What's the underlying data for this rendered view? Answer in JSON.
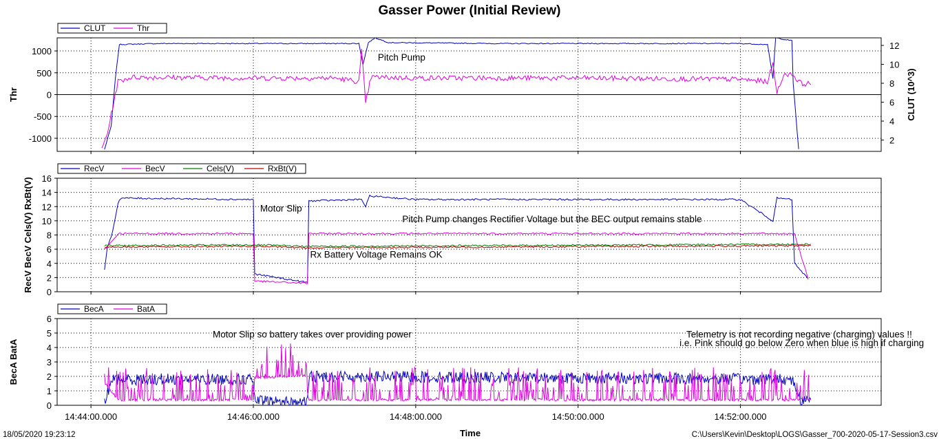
{
  "chart_data": {
    "type": "line",
    "title": "Gasser Power (Initial Review)",
    "xlabel": "Time",
    "x_axis": {
      "range": [
        "14:43:35",
        "14:53:44"
      ],
      "ticks": [
        "14:44:00.000",
        "14:46:00.000",
        "14:48:00.000",
        "14:50:00.000",
        "14:52:00.000"
      ],
      "grid": true
    },
    "footer": {
      "left": "18/05/2020 19:23:12",
      "right": "C:\\Users\\Kevin\\Desktop\\LOGS\\Gasser_700-2020-05-17-Session3.csv"
    },
    "panels": [
      {
        "id": "top",
        "ylabel": "Thr",
        "ylabel_right": "CLUT  (10^3)",
        "ylim": [
          -1300,
          1300
        ],
        "yticks": [
          "1000",
          "500",
          "0",
          "-500",
          "-1000"
        ],
        "ylim_right": [
          0.8,
          12.8
        ],
        "yticks_right": [
          "12",
          "10",
          "8",
          "6",
          "4",
          "2"
        ],
        "legend": [
          {
            "name": "CLUT",
            "color": "#0000c0"
          },
          {
            "name": "Thr",
            "color": "#e000e0"
          }
        ],
        "annotations": [
          {
            "text": "Pitch Pump",
            "x": "14:47:32",
            "y": 780
          }
        ],
        "series": [
          {
            "name": "CLUT",
            "axis": "right",
            "color": "#0000c0",
            "points": [
              [
                "14:44:10",
                1.0
              ],
              [
                "14:44:15",
                3.5
              ],
              [
                "14:44:18",
                8.5
              ],
              [
                "14:44:21",
                12.1
              ],
              [
                "14:44:50",
                12.2
              ],
              [
                "14:47:00",
                12.2
              ],
              [
                "14:47:18",
                12.2
              ],
              [
                "14:47:21",
                10.0
              ],
              [
                "14:47:25",
                12.3
              ],
              [
                "14:47:30",
                12.8
              ],
              [
                "14:47:40",
                12.3
              ],
              [
                "14:49:00",
                12.2
              ],
              [
                "14:52:00",
                12.2
              ],
              [
                "14:52:20",
                12.1
              ],
              [
                "14:52:24",
                8.5
              ],
              [
                "14:52:26",
                12.8
              ],
              [
                "14:52:38",
                12.5
              ],
              [
                "14:52:39",
                8.0
              ],
              [
                "14:52:43",
                1.0
              ]
            ]
          },
          {
            "name": "Thr",
            "axis": "left",
            "color": "#e000e0",
            "points": [
              [
                "14:44:08",
                -1250
              ],
              [
                "14:44:12",
                -900
              ],
              [
                "14:44:16",
                -300
              ],
              [
                "14:44:20",
                300
              ],
              [
                "14:44:30",
                400
              ],
              [
                "14:46:00",
                380
              ],
              [
                "14:47:00",
                380
              ],
              [
                "14:47:18",
                300
              ],
              [
                "14:47:20",
                1000
              ],
              [
                "14:47:23",
                -200
              ],
              [
                "14:47:27",
                400
              ],
              [
                "14:48:00",
                380
              ],
              [
                "14:50:00",
                380
              ],
              [
                "14:52:00",
                350
              ],
              [
                "14:52:20",
                300
              ],
              [
                "14:52:24",
                700
              ],
              [
                "14:52:27",
                50
              ],
              [
                "14:52:31",
                400
              ],
              [
                "14:52:37",
                500
              ],
              [
                "14:52:45",
                250
              ],
              [
                "14:52:52",
                250
              ]
            ]
          }
        ]
      },
      {
        "id": "middle",
        "ylabel": "RecV BecV Cels(V) RxBt(V)",
        "ylim": [
          0,
          16
        ],
        "yticks": [
          "16",
          "14",
          "12",
          "10",
          "8",
          "6",
          "4",
          "2",
          "0"
        ],
        "legend": [
          {
            "name": "RecV",
            "color": "#0000c0"
          },
          {
            "name": "BecV",
            "color": "#e000e0"
          },
          {
            "name": "Cels(V)",
            "color": "#008000"
          },
          {
            "name": "RxBt(V)",
            "color": "#c00000"
          }
        ],
        "annotations": [
          {
            "text": "Motor Slip",
            "x": "14:46:05",
            "y": 11.3
          },
          {
            "text": "Pitch Pump changes Rectifier Voltage but the BEC output remains stable",
            "x": "14:47:50",
            "y": 9.8
          },
          {
            "text": "Rx Battery Voltage Remains OK",
            "x": "14:46:42",
            "y": 4.8
          }
        ],
        "series": [
          {
            "name": "RecV",
            "color": "#0000c0",
            "points": [
              [
                "14:44:10",
                3.2
              ],
              [
                "14:44:12",
                6.0
              ],
              [
                "14:44:16",
                8.5
              ],
              [
                "14:44:20",
                12.5
              ],
              [
                "14:44:22",
                13.2
              ],
              [
                "14:46:00",
                13.0
              ],
              [
                "14:46:01",
                2.5
              ],
              [
                "14:46:40",
                1.3
              ],
              [
                "14:46:41",
                12.8
              ],
              [
                "14:47:20",
                13.0
              ],
              [
                "14:47:23",
                12.0
              ],
              [
                "14:47:26",
                13.5
              ],
              [
                "14:48:00",
                13.0
              ],
              [
                "14:52:00",
                13.0
              ],
              [
                "14:52:24",
                10.0
              ],
              [
                "14:52:27",
                13.2
              ],
              [
                "14:52:38",
                13.0
              ],
              [
                "14:52:40",
                4.0
              ],
              [
                "14:52:50",
                1.8
              ]
            ]
          },
          {
            "name": "BecV",
            "color": "#e000e0",
            "points": [
              [
                "14:44:10",
                6.0
              ],
              [
                "14:44:15",
                7.0
              ],
              [
                "14:44:20",
                8.2
              ],
              [
                "14:46:00",
                8.2
              ],
              [
                "14:46:01",
                1.5
              ],
              [
                "14:46:40",
                1.2
              ],
              [
                "14:46:41",
                8.2
              ],
              [
                "14:52:40",
                8.2
              ],
              [
                "14:52:50",
                1.8
              ]
            ]
          },
          {
            "name": "Cels(V)",
            "color": "#008000",
            "points": [
              [
                "14:44:10",
                6.5
              ],
              [
                "14:46:00",
                6.6
              ],
              [
                "14:46:40",
                6.4
              ],
              [
                "14:52:52",
                6.7
              ]
            ]
          },
          {
            "name": "RxBt(V)",
            "color": "#c00000",
            "points": [
              [
                "14:44:10",
                6.3
              ],
              [
                "14:46:00",
                6.4
              ],
              [
                "14:46:40",
                6.2
              ],
              [
                "14:52:52",
                6.5
              ]
            ]
          }
        ]
      },
      {
        "id": "bottom",
        "ylabel": "BecA BatA",
        "ylim": [
          0,
          6
        ],
        "yticks": [
          "6",
          "5",
          "4",
          "3",
          "2",
          "1",
          "0"
        ],
        "legend": [
          {
            "name": "BecA",
            "color": "#0000c0"
          },
          {
            "name": "BatA",
            "color": "#e000e0"
          }
        ],
        "annotations": [
          {
            "text": "Motor Slip so battery takes over providing power",
            "x": "14:45:30",
            "y": 4.7
          },
          {
            "text": "Telemetry is not recording negative (charging) values !!",
            "x": "14:51:20",
            "y": 4.7
          },
          {
            "text": "i.e. Pink should go below Zero when blue is high if charging",
            "x": "14:51:15",
            "y": 4.1
          }
        ],
        "series": [
          {
            "name": "BecA",
            "color": "#0000c0",
            "noise": 0.4,
            "points": [
              [
                "14:44:10",
                0.1
              ],
              [
                "14:44:15",
                1.8
              ],
              [
                "14:46:00",
                1.8
              ],
              [
                "14:46:01",
                0.3
              ],
              [
                "14:46:40",
                0.2
              ],
              [
                "14:46:41",
                2.0
              ],
              [
                "14:52:38",
                1.8
              ],
              [
                "14:52:45",
                0.3
              ],
              [
                "14:52:52",
                0.4
              ]
            ]
          },
          {
            "name": "BatA",
            "color": "#e000e0",
            "noise": 0.9,
            "points": [
              [
                "14:44:10",
                1.5
              ],
              [
                "14:44:20",
                0.3
              ],
              [
                "14:46:00",
                0.3
              ],
              [
                "14:46:01",
                1.8
              ],
              [
                "14:46:38",
                2.0
              ],
              [
                "14:46:41",
                0.3
              ],
              [
                "14:52:40",
                0.3
              ],
              [
                "14:52:52",
                0.4
              ]
            ]
          }
        ]
      }
    ]
  }
}
